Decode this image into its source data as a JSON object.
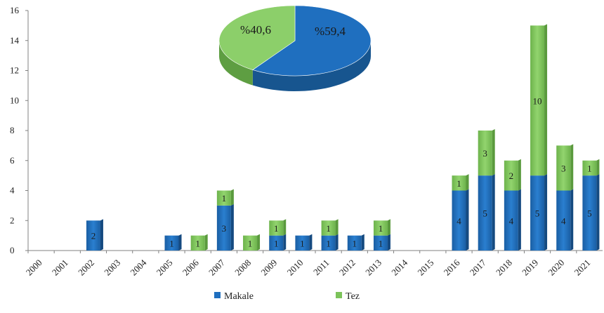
{
  "chart_data": [
    {
      "type": "bar",
      "stacked": true,
      "categories": [
        "2000",
        "2001",
        "2002",
        "2003",
        "2004",
        "2005",
        "2006",
        "2007",
        "2008",
        "2009",
        "2010",
        "2011",
        "2012",
        "2013",
        "2014",
        "2015",
        "2016",
        "2017",
        "2018",
        "2019",
        "2020",
        "2021"
      ],
      "series": [
        {
          "name": "Makale",
          "color": "#1f6fbf",
          "values": [
            0,
            0,
            2,
            0,
            0,
            1,
            0,
            3,
            0,
            1,
            1,
            1,
            1,
            1,
            0,
            0,
            4,
            5,
            4,
            5,
            4,
            5
          ]
        },
        {
          "name": "Tez",
          "color": "#7cc35a",
          "values": [
            0,
            0,
            0,
            0,
            0,
            0,
            1,
            1,
            1,
            1,
            0,
            1,
            0,
            1,
            0,
            0,
            1,
            3,
            2,
            10,
            3,
            1
          ]
        }
      ],
      "ylim": [
        0,
        16
      ],
      "yticks": [
        0,
        2,
        4,
        6,
        8,
        10,
        12,
        14,
        16
      ],
      "grid": false,
      "legend": "bottom-center"
    },
    {
      "type": "pie",
      "slices": [
        {
          "name": "Makale",
          "label": "%59,4",
          "value": 59.4,
          "color": "#1f6fbf"
        },
        {
          "name": "Tez",
          "label": "%40,6",
          "value": 40.6,
          "color": "#7cc35a"
        }
      ],
      "style": "3d"
    }
  ]
}
